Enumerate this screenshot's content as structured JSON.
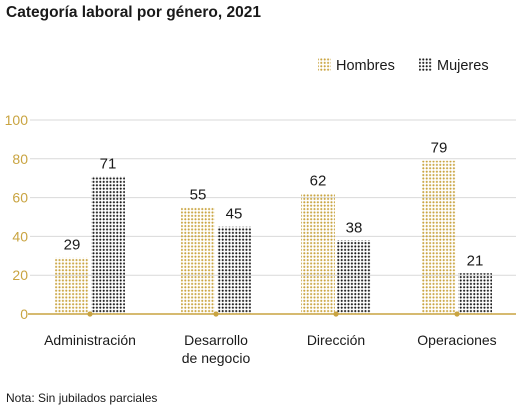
{
  "title": "Categoría laboral por género, 2021",
  "note": "Nota: Sin jubilados parciales",
  "colors": {
    "hombres": "#c9a441",
    "mujeres": "#1a1a1a",
    "axis": "#c9a441",
    "grid": "#d9d9d9",
    "tick": "#c9a441"
  },
  "chart_data": {
    "type": "bar",
    "title": "Categoría laboral por género, 2021",
    "categories": [
      [
        "Administración"
      ],
      [
        "Desarrollo",
        "de negocio"
      ],
      [
        "Dirección"
      ],
      [
        "Operaciones"
      ]
    ],
    "series": [
      {
        "name": "Hombres",
        "values": [
          29,
          55,
          62,
          79
        ],
        "pattern": "dotted",
        "color": "#c9a441"
      },
      {
        "name": "Mujeres",
        "values": [
          71,
          45,
          38,
          21
        ],
        "pattern": "dotted",
        "color": "#1a1a1a"
      }
    ],
    "yticks": [
      0,
      20,
      40,
      60,
      80,
      100
    ],
    "ylim": [
      0,
      100
    ],
    "grid": true,
    "legend": "top-right"
  }
}
